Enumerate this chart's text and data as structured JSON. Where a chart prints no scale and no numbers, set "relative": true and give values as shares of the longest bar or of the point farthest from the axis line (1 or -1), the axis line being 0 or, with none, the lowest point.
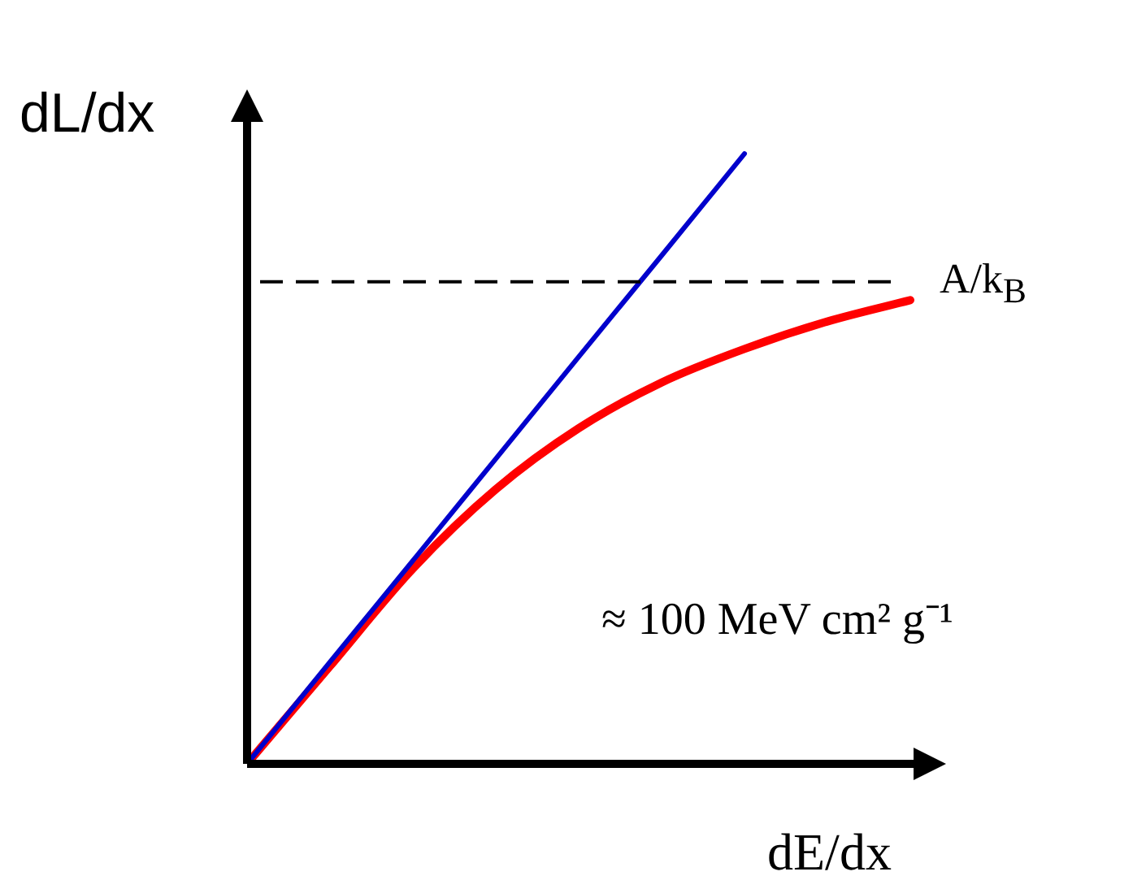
{
  "chart_data": {
    "type": "line",
    "relative": true,
    "xlabel": "dE/dx",
    "ylabel": "dL/dx",
    "categories": [
      null,
      null,
      null,
      null,
      null,
      null,
      null,
      null,
      null
    ],
    "series": [
      {
        "color": "#0000cc",
        "values": [
          0,
          0.167,
          0.333,
          0.5,
          0.667,
          0.833,
          1,
          null,
          null
        ]
      },
      {
        "color": "#ff0000",
        "values": [
          0,
          0.16,
          0.32,
          0.45,
          0.55,
          0.625,
          0.68,
          0.725,
          0.76
        ]
      }
    ],
    "ref_lines": [
      {
        "axis": "y",
        "value": 0.79,
        "label": "A/k$_{B}$",
        "color": "#000000",
        "line_style": "dashed"
      }
    ],
    "annotations": [
      "≈ 100 MeV cm² g⁻¹"
    ],
    "legend": false,
    "marker": "none",
    "line_style": "solid"
  }
}
